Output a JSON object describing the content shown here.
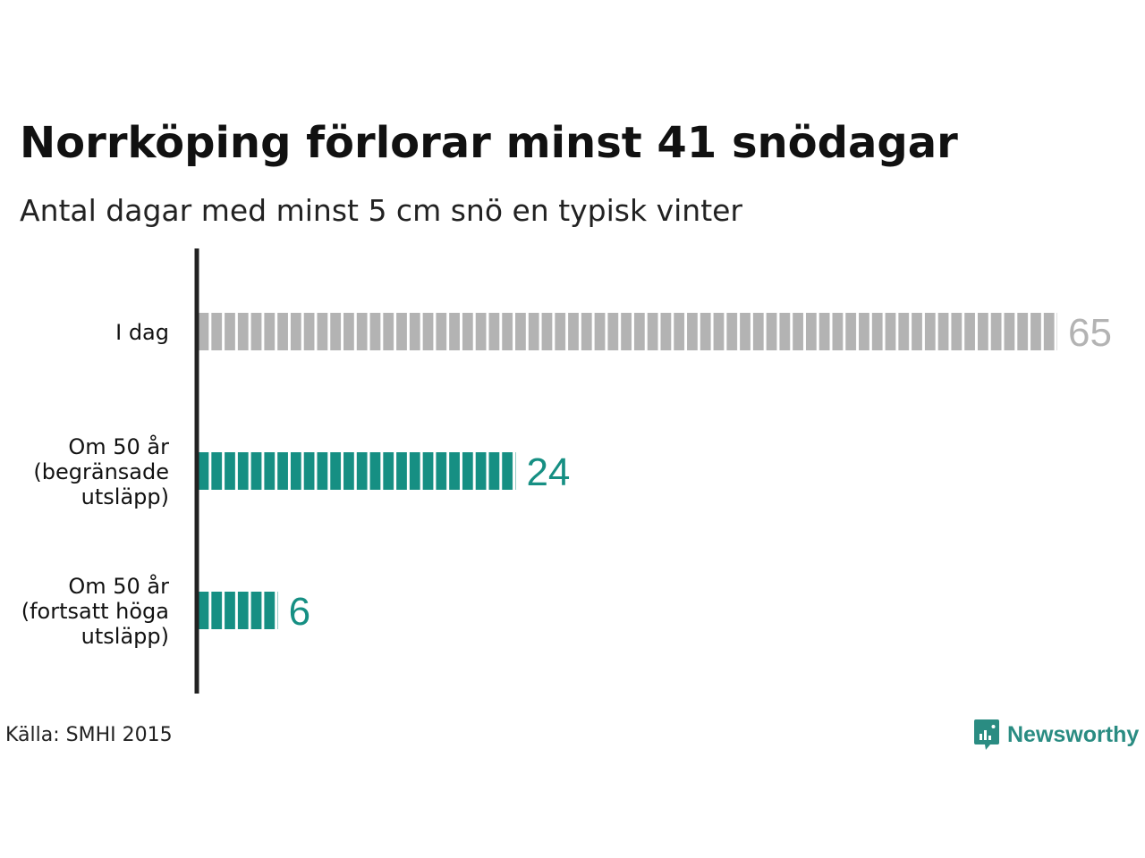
{
  "title": "Norrköping förlorar minst 41 snödagar",
  "subtitle": "Antal dagar med minst 5 cm snö en typisk vinter",
  "source": "Källa: SMHI 2015",
  "logo": {
    "text": "Newsworthy",
    "icon": "newsworthy-logo-icon"
  },
  "colors": {
    "today": "#b3b3b3",
    "future": "#168f83",
    "axis": "#222222",
    "label": "#111111"
  },
  "chart_data": {
    "type": "bar",
    "orientation": "horizontal",
    "categories": [
      [
        "I dag"
      ],
      [
        "Om 50 år",
        "(begränsade",
        "utsläpp)"
      ],
      [
        "Om 50 år",
        "(fortsatt höga",
        "utsläpp)"
      ]
    ],
    "values": [
      65,
      24,
      6
    ],
    "data_labels": [
      "65",
      "24",
      "6"
    ],
    "bar_colors": [
      "#b3b3b3",
      "#168f83",
      "#168f83"
    ],
    "label_colors": [
      "#b3b3b3",
      "#168f83",
      "#168f83"
    ],
    "unit": "dagar",
    "xlim": [
      0,
      65
    ],
    "grid": false,
    "legend": "none"
  }
}
